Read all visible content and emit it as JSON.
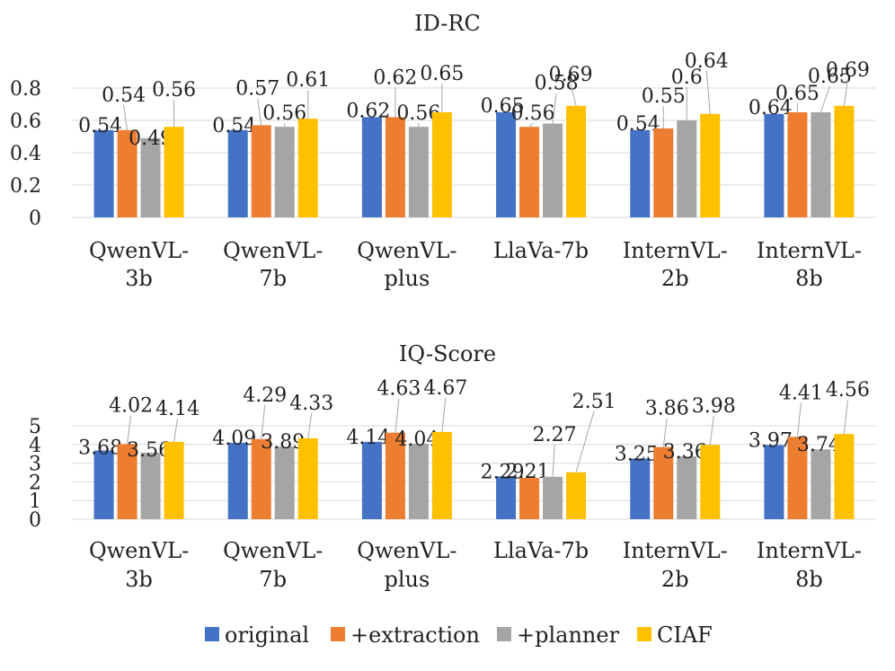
{
  "series_colors": {
    "original": "#4472C4",
    "+extraction": "#ED7D31",
    "+planner": "#A5A5A5",
    "CIAF": "#FFC000"
  },
  "legend": [
    "original",
    "+extraction",
    "+planner",
    "CIAF"
  ],
  "chart_data": [
    {
      "type": "bar",
      "title": "ID-RC",
      "categories": [
        [
          "QwenVL-",
          "3b"
        ],
        [
          "QwenVL-",
          "7b"
        ],
        [
          "QwenVL-",
          "plus"
        ],
        [
          "LlaVa-7b"
        ],
        [
          "InternVL-",
          "2b"
        ],
        [
          "InternVL-",
          "8b"
        ]
      ],
      "series": [
        {
          "name": "original",
          "values": [
            0.54,
            0.54,
            0.62,
            0.65,
            0.54,
            0.64
          ]
        },
        {
          "name": "+extraction",
          "values": [
            0.54,
            0.57,
            0.62,
            0.56,
            0.55,
            0.65
          ]
        },
        {
          "name": "+planner",
          "values": [
            0.49,
            0.56,
            0.56,
            0.58,
            0.6,
            0.65
          ]
        },
        {
          "name": "CIAF",
          "values": [
            0.56,
            0.61,
            0.65,
            0.69,
            0.64,
            0.69
          ]
        }
      ],
      "yticks": [
        "0",
        "0.2",
        "0.4",
        "0.6",
        "0.8"
      ],
      "ylim": [
        0,
        0.8
      ],
      "grid": true,
      "legend_position": "bottom"
    },
    {
      "type": "bar",
      "title": "IQ-Score",
      "categories": [
        [
          "QwenVL-",
          "3b"
        ],
        [
          "QwenVL-",
          "7b"
        ],
        [
          "QwenVL-",
          "plus"
        ],
        [
          "LlaVa-7b"
        ],
        [
          "InternVL-",
          "2b"
        ],
        [
          "InternVL-",
          "8b"
        ]
      ],
      "series": [
        {
          "name": "original",
          "values": [
            3.68,
            4.09,
            4.14,
            2.29,
            3.25,
            3.97
          ]
        },
        {
          "name": "+extraction",
          "values": [
            4.02,
            4.29,
            4.63,
            2.21,
            3.86,
            4.41
          ]
        },
        {
          "name": "+planner",
          "values": [
            3.56,
            3.89,
            4.04,
            2.27,
            3.36,
            3.74
          ]
        },
        {
          "name": "CIAF",
          "values": [
            4.14,
            4.33,
            4.67,
            2.51,
            3.98,
            4.56
          ]
        }
      ],
      "yticks": [
        "0",
        "1",
        "2",
        "3",
        "4",
        "5"
      ],
      "ylim": [
        0,
        5
      ],
      "grid": true,
      "legend_position": "bottom"
    }
  ]
}
